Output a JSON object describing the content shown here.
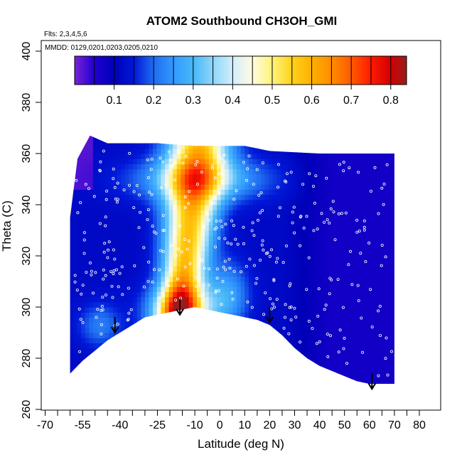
{
  "chart_data": {
    "type": "heatmap",
    "title": "ATOM2 Southbound CH3OH_GMI",
    "flights_note": "Flts: 2,3,4,5,6",
    "dates_note": "MMDD: 0129,0201,0203,0205,0210",
    "xlabel": "Latitude (deg N)",
    "ylabel": "Theta (C)",
    "xlim": [
      -70,
      83
    ],
    "ylim": [
      260,
      405
    ],
    "x_major_ticks": [
      -70,
      -55,
      -40,
      -25,
      -10,
      0,
      10,
      20,
      30,
      40,
      50,
      60,
      70,
      80
    ],
    "x_minor_ticks": [
      -65,
      -60,
      -50,
      -45,
      -35,
      -30,
      -20,
      -15,
      -5,
      5,
      15,
      25,
      35,
      45,
      55,
      65,
      75
    ],
    "y_ticks": [
      260,
      280,
      300,
      320,
      340,
      360,
      380,
      400
    ],
    "colorbar": {
      "min": 0.0,
      "max": 0.84,
      "ticks": [
        0.1,
        0.2,
        0.3,
        0.4,
        0.5,
        0.6,
        0.7,
        0.8
      ],
      "stops": [
        {
          "v": 0.0,
          "color": "#7a22d6"
        },
        {
          "v": 0.05,
          "color": "#1f00d0"
        },
        {
          "v": 0.1,
          "color": "#0000b8"
        },
        {
          "v": 0.15,
          "color": "#0018d8"
        },
        {
          "v": 0.2,
          "color": "#1f6cf0"
        },
        {
          "v": 0.25,
          "color": "#3399ff"
        },
        {
          "v": 0.3,
          "color": "#47b8f8"
        },
        {
          "v": 0.35,
          "color": "#8fd6fa"
        },
        {
          "v": 0.4,
          "color": "#d2eefc"
        },
        {
          "v": 0.45,
          "color": "#fffbe0"
        },
        {
          "v": 0.5,
          "color": "#fff27a"
        },
        {
          "v": 0.55,
          "color": "#ffd21a"
        },
        {
          "v": 0.6,
          "color": "#ffb000"
        },
        {
          "v": 0.65,
          "color": "#ff8c00"
        },
        {
          "v": 0.7,
          "color": "#ff5a00"
        },
        {
          "v": 0.75,
          "color": "#ff1a00"
        },
        {
          "v": 0.8,
          "color": "#d10000"
        },
        {
          "v": 0.84,
          "color": "#9a1c1c"
        }
      ]
    },
    "surface_profile": [
      {
        "lat": -60,
        "theta": 274
      },
      {
        "lat": -55,
        "theta": 279
      },
      {
        "lat": -50,
        "theta": 283
      },
      {
        "lat": -45,
        "theta": 287
      },
      {
        "lat": -40,
        "theta": 290
      },
      {
        "lat": -35,
        "theta": 293
      },
      {
        "lat": -30,
        "theta": 296
      },
      {
        "lat": -25,
        "theta": 297
      },
      {
        "lat": -20,
        "theta": 298
      },
      {
        "lat": -15,
        "theta": 299
      },
      {
        "lat": -10,
        "theta": 300
      },
      {
        "lat": -5,
        "theta": 299
      },
      {
        "lat": 0,
        "theta": 298
      },
      {
        "lat": 5,
        "theta": 297
      },
      {
        "lat": 10,
        "theta": 296
      },
      {
        "lat": 15,
        "theta": 295
      },
      {
        "lat": 20,
        "theta": 293
      },
      {
        "lat": 25,
        "theta": 289
      },
      {
        "lat": 30,
        "theta": 284
      },
      {
        "lat": 35,
        "theta": 280
      },
      {
        "lat": 40,
        "theta": 277
      },
      {
        "lat": 45,
        "theta": 275
      },
      {
        "lat": 50,
        "theta": 273
      },
      {
        "lat": 55,
        "theta": 271
      },
      {
        "lat": 60,
        "theta": 270
      },
      {
        "lat": 65,
        "theta": 270
      },
      {
        "lat": 70,
        "theta": 270
      }
    ],
    "top_profile": [
      {
        "lat": -60,
        "theta": 335
      },
      {
        "lat": -57,
        "theta": 358
      },
      {
        "lat": -52,
        "theta": 367
      },
      {
        "lat": -45,
        "theta": 364
      },
      {
        "lat": -35,
        "theta": 364
      },
      {
        "lat": -25,
        "theta": 364
      },
      {
        "lat": -10,
        "theta": 363
      },
      {
        "lat": 10,
        "theta": 363
      },
      {
        "lat": 20,
        "theta": 361
      },
      {
        "lat": 40,
        "theta": 360
      },
      {
        "lat": 55,
        "theta": 360
      },
      {
        "lat": 70,
        "theta": 360
      }
    ],
    "arrows_lat": [
      -42,
      -16,
      20,
      61
    ],
    "arrow_tips_theta": [
      290,
      297,
      294,
      268
    ]
  }
}
